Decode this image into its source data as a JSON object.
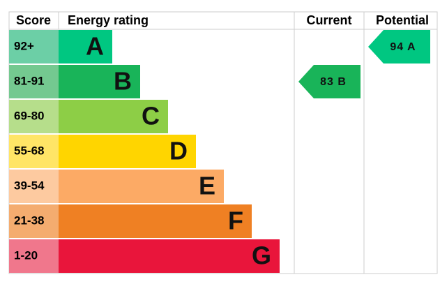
{
  "header": {
    "score": "Score",
    "rating": "Energy rating",
    "current": "Current",
    "potential": "Potential"
  },
  "bands": [
    {
      "score": "92+",
      "letter": "A",
      "color": "#00c781",
      "light": "#6ccfa6"
    },
    {
      "score": "81-91",
      "letter": "B",
      "color": "#19b459",
      "light": "#74c990"
    },
    {
      "score": "69-80",
      "letter": "C",
      "color": "#8dce46",
      "light": "#b6de8b"
    },
    {
      "score": "55-68",
      "letter": "D",
      "color": "#ffd500",
      "light": "#ffe566"
    },
    {
      "score": "39-54",
      "letter": "E",
      "color": "#fcaa65",
      "light": "#fdcaa0"
    },
    {
      "score": "21-38",
      "letter": "F",
      "color": "#ef8023",
      "light": "#f4ac6f"
    },
    {
      "score": "1-20",
      "letter": "G",
      "color": "#e9153b",
      "light": "#f0778c"
    }
  ],
  "current": {
    "label": "83 B",
    "color": "#19b459"
  },
  "potential": {
    "label": "94 A",
    "color": "#00c781"
  }
}
